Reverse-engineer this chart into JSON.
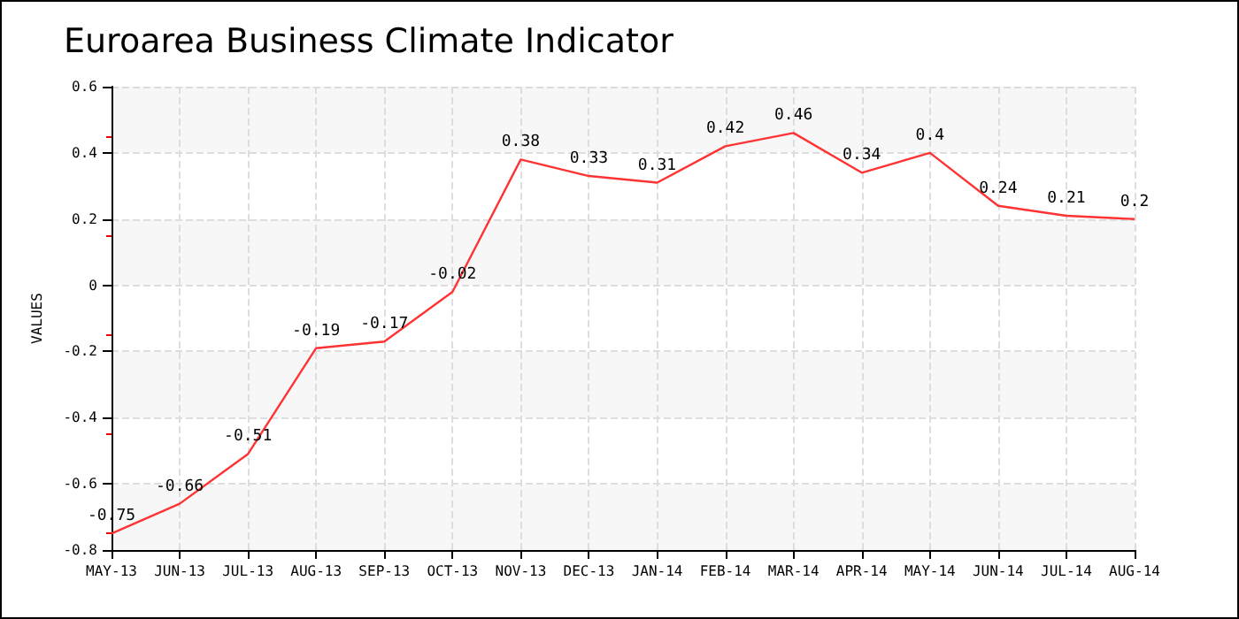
{
  "chart_data": {
    "type": "line",
    "title": "Euroarea Business Climate Indicator",
    "ylabel": "VALUES",
    "categories": [
      "MAY-13",
      "JUN-13",
      "JUL-13",
      "AUG-13",
      "SEP-13",
      "OCT-13",
      "NOV-13",
      "DEC-13",
      "JAN-14",
      "FEB-14",
      "MAR-14",
      "APR-14",
      "MAY-14",
      "JUN-14",
      "JUL-14",
      "AUG-14"
    ],
    "series": [
      {
        "color": "#ff3333",
        "values": [
          -0.75,
          -0.66,
          -0.51,
          -0.19,
          -0.17,
          -0.02,
          0.38,
          0.33,
          0.31,
          0.42,
          0.46,
          0.34,
          0.4,
          0.24,
          0.21,
          0.2
        ]
      }
    ],
    "ylim": [
      -0.8,
      0.6
    ],
    "yticks": [
      -0.8,
      -0.6,
      -0.4,
      -0.2,
      0,
      0.2,
      0.4,
      0.6
    ],
    "grid": true,
    "data_labels": true,
    "marker": "none",
    "line_style": "solid"
  }
}
